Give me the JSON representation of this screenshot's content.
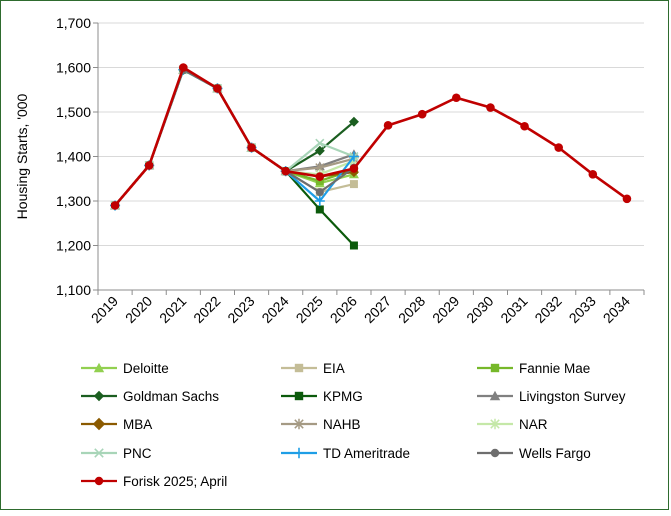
{
  "chart_data": {
    "type": "line",
    "title": "",
    "xlabel": "",
    "ylabel": "Housing Starts, '000",
    "ylim": [
      1100,
      1700
    ],
    "yticks": [
      1100,
      1200,
      1300,
      1400,
      1500,
      1600,
      1700
    ],
    "ytick_labels": [
      "1,100",
      "1,200",
      "1,300",
      "1,400",
      "1,500",
      "1,600",
      "1,700"
    ],
    "x": [
      "2019",
      "2020",
      "2021",
      "2022",
      "2023",
      "2024",
      "2025",
      "2026",
      "2027",
      "2028",
      "2029",
      "2030",
      "2031",
      "2032",
      "2033",
      "2034"
    ],
    "grid": "horizontal",
    "legend_position": "bottom",
    "series": [
      {
        "name": "Deloitte",
        "color": "#92d050",
        "marker": "triangle",
        "values": [
          1290,
          1380,
          1595,
          1553,
          1420,
          1367,
          1340,
          1360,
          null,
          null,
          null,
          null,
          null,
          null,
          null,
          null
        ]
      },
      {
        "name": "EIA",
        "color": "#c4bd97",
        "marker": "square",
        "values": [
          1290,
          1380,
          1595,
          1553,
          1420,
          1367,
          1320,
          1338,
          null,
          null,
          null,
          null,
          null,
          null,
          null,
          null
        ]
      },
      {
        "name": "Fannie Mae",
        "color": "#76b82a",
        "marker": "square",
        "values": [
          1290,
          1380,
          1595,
          1553,
          1420,
          1367,
          1345,
          1370,
          null,
          null,
          null,
          null,
          null,
          null,
          null,
          null
        ]
      },
      {
        "name": "Goldman Sachs",
        "color": "#1b5e20",
        "marker": "diamond",
        "values": [
          1290,
          1380,
          1595,
          1553,
          1420,
          1367,
          1413,
          1478,
          null,
          null,
          null,
          null,
          null,
          null,
          null,
          null
        ]
      },
      {
        "name": "KPMG",
        "color": "#0b5a0b",
        "marker": "square",
        "values": [
          1290,
          1380,
          1595,
          1553,
          1420,
          1367,
          1281,
          1200,
          null,
          null,
          null,
          null,
          null,
          null,
          null,
          null
        ]
      },
      {
        "name": "Livingston Survey",
        "color": "#808080",
        "marker": "triangle",
        "values": [
          1290,
          1380,
          1595,
          1553,
          1420,
          1367,
          1378,
          1405,
          null,
          null,
          null,
          null,
          null,
          null,
          null,
          null
        ]
      },
      {
        "name": "MBA",
        "color": "#8b5a00",
        "marker": "diamond",
        "values": [
          1290,
          1380,
          1595,
          1553,
          1420,
          1367,
          1355,
          1365,
          null,
          null,
          null,
          null,
          null,
          null,
          null,
          null
        ]
      },
      {
        "name": "NAHB",
        "color": "#a59a84",
        "marker": "star",
        "values": [
          1290,
          1380,
          1595,
          1553,
          1420,
          1367,
          1375,
          1395,
          null,
          null,
          null,
          null,
          null,
          null,
          null,
          null
        ]
      },
      {
        "name": "NAR",
        "color": "#c5e8a8",
        "marker": "star",
        "values": [
          1290,
          1380,
          1595,
          1553,
          1420,
          1367,
          1360,
          1390,
          null,
          null,
          null,
          null,
          null,
          null,
          null,
          null
        ]
      },
      {
        "name": "PNC",
        "color": "#a8d5b8",
        "marker": "x",
        "values": [
          1290,
          1380,
          1595,
          1553,
          1420,
          1367,
          1430,
          1400,
          null,
          null,
          null,
          null,
          null,
          null,
          null,
          null
        ]
      },
      {
        "name": "TD Ameritrade",
        "color": "#1e9ee6",
        "marker": "plus",
        "values": [
          1290,
          1380,
          1595,
          1553,
          1420,
          1367,
          1300,
          1400,
          null,
          null,
          null,
          null,
          null,
          null,
          null,
          null
        ]
      },
      {
        "name": "Wells Fargo",
        "color": "#6e6e6e",
        "marker": "circle",
        "values": [
          1290,
          1380,
          1595,
          1553,
          1420,
          1367,
          1320,
          1375,
          null,
          null,
          null,
          null,
          null,
          null,
          null,
          null
        ]
      },
      {
        "name": "Forisk 2025; April",
        "color": "#c00000",
        "marker": "circle",
        "values": [
          1290,
          1380,
          1600,
          1553,
          1420,
          1367,
          1355,
          1373,
          1470,
          1495,
          1532,
          1510,
          1468,
          1420,
          1360,
          1305
        ]
      }
    ]
  }
}
